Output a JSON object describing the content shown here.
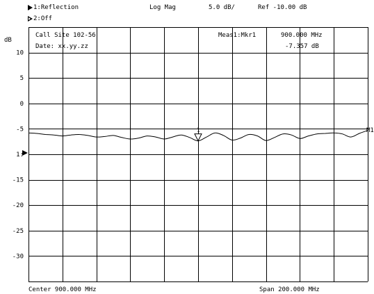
{
  "header": {
    "channel1": "1:Reflection",
    "channel2": "2:Off",
    "format": "Log Mag",
    "scale": "5.0 dB/",
    "reference": "Ref -10.00 dB"
  },
  "annotations": {
    "site": "Call Site 102-56",
    "date": "Date: xx.yy.zz",
    "marker_label": "Meas1:Mkr1",
    "marker_freq": "900.000 MHz",
    "marker_value": "-7.357 dB",
    "marker_number": "1",
    "right_marker": "M1"
  },
  "footer": {
    "center": "Center 900.000 MHz",
    "span": "Span 200.000 MHz"
  },
  "chart_data": {
    "type": "line",
    "ylabel": "dB",
    "y_ticks": [
      "10",
      "5",
      "0",
      "-5",
      "1:",
      "-15",
      "-20",
      "-25",
      "-30"
    ],
    "y_tick_values": [
      10,
      5,
      0,
      -5,
      -10,
      -15,
      -20,
      -25,
      -30
    ],
    "ylim": [
      -35,
      15
    ],
    "xlim": [
      800,
      1000
    ],
    "reference_level": -10,
    "reference_marker": "1:",
    "marker": {
      "x": 900,
      "y": -7.357
    },
    "series": [
      {
        "x": [
          800,
          805,
          810,
          815,
          820,
          825,
          830,
          835,
          840,
          845,
          850,
          855,
          860,
          865,
          870,
          875,
          880,
          885,
          890,
          895,
          900,
          905,
          910,
          915,
          920,
          925,
          930,
          935,
          940,
          945,
          950,
          955,
          960,
          965,
          970,
          975,
          980,
          985,
          990,
          995,
          1000
        ],
        "values": [
          -5.8,
          -5.9,
          -6.1,
          -6.2,
          -6.4,
          -6.2,
          -6.1,
          -6.3,
          -6.6,
          -6.5,
          -6.3,
          -6.7,
          -7.0,
          -6.8,
          -6.4,
          -6.6,
          -7.0,
          -6.6,
          -6.2,
          -6.7,
          -7.357,
          -6.6,
          -5.8,
          -6.3,
          -7.2,
          -6.8,
          -6.1,
          -6.4,
          -7.3,
          -6.7,
          -6.0,
          -6.2,
          -6.9,
          -6.4,
          -6.0,
          -5.9,
          -5.8,
          -6.0,
          -6.6,
          -5.9,
          -5.3
        ]
      }
    ],
    "grid": true
  }
}
